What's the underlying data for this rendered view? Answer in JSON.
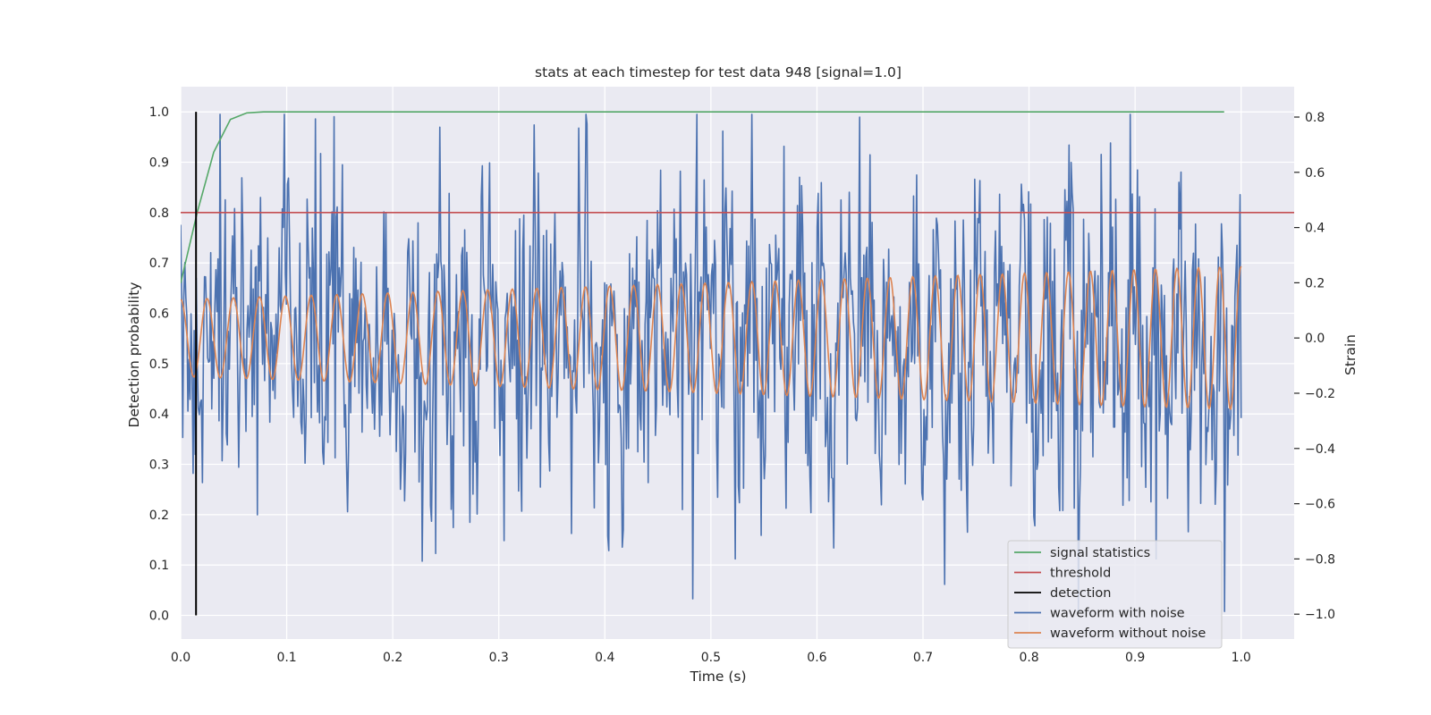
{
  "chart_data": {
    "type": "line",
    "title": "stats at each timestep for test data 948 [signal=1.0]",
    "xlabel": "Time (s)",
    "ylabel_left": "Detection probability",
    "ylabel_right": "Strain",
    "xlim": [
      0.0,
      1.05
    ],
    "ylim_left": [
      -0.047,
      1.05
    ],
    "ylim_right": [
      -1.09,
      0.91
    ],
    "x_ticks": [
      "0.0",
      "0.1",
      "0.2",
      "0.3",
      "0.4",
      "0.5",
      "0.6",
      "0.7",
      "0.8",
      "0.9",
      "1.0"
    ],
    "y_ticks_left": [
      "0.0",
      "0.1",
      "0.2",
      "0.3",
      "0.4",
      "0.5",
      "0.6",
      "0.7",
      "0.8",
      "0.9",
      "1.0"
    ],
    "y_ticks_right": [
      "−1.0",
      "−0.8",
      "−0.6",
      "−0.4",
      "−0.2",
      "0.0",
      "0.2",
      "0.4",
      "0.6",
      "0.8"
    ],
    "grid": true,
    "legend_position": "lower-right",
    "series": [
      {
        "name": "signal statistics",
        "axis": "left",
        "color": "#55a868",
        "x": [
          0.0,
          0.0156,
          0.0312,
          0.0469,
          0.0625,
          0.0781,
          0.0938,
          0.2,
          0.4,
          0.6,
          0.8,
          0.984
        ],
        "y": [
          0.66,
          0.8,
          0.92,
          0.985,
          0.998,
          1.0,
          1.0,
          1.0,
          1.0,
          1.0,
          1.0,
          1.0
        ]
      },
      {
        "name": "threshold",
        "axis": "left",
        "color": "#c44e52",
        "x": [
          0.0,
          1.05
        ],
        "y": [
          0.8,
          0.8
        ]
      },
      {
        "name": "detection",
        "axis": "left",
        "color": "#000000",
        "x": [
          0.0145,
          0.0145
        ],
        "y": [
          0.0,
          1.0
        ]
      },
      {
        "name": "waveform with noise",
        "axis": "right",
        "color": "#4c72b0",
        "sampling": {
          "x_start": 0.0,
          "x_end": 1.0,
          "n_points": 1024
        },
        "peak_points": [
          {
            "x": 0.0,
            "y": 0.41
          },
          {
            "x": 0.012,
            "y": -0.49
          },
          {
            "x": 0.058,
            "y": 0.58
          },
          {
            "x": 0.072,
            "y": -0.64
          },
          {
            "x": 0.098,
            "y": 0.81
          },
          {
            "x": 0.24,
            "y": -0.78
          },
          {
            "x": 0.375,
            "y": 0.76
          },
          {
            "x": 0.404,
            "y": -0.77
          },
          {
            "x": 0.64,
            "y": 0.8
          },
          {
            "x": 0.805,
            "y": -0.68
          },
          {
            "x": 0.92,
            "y": -0.8
          },
          {
            "x": 0.984,
            "y": -0.99
          },
          {
            "x": 1.0,
            "y": -0.29
          }
        ],
        "y_range": [
          -1.0,
          0.81
        ],
        "noise_std": 0.28
      },
      {
        "name": "waveform without noise",
        "axis": "right",
        "color": "#dd8452",
        "sampling": {
          "x_start": 0.0,
          "x_end": 1.0,
          "n_points": 1024
        },
        "model": "sinusoid",
        "frequency_hz": [
          40,
          50
        ],
        "amplitude": [
          0.14,
          0.26
        ],
        "offset": 0.0
      }
    ]
  }
}
